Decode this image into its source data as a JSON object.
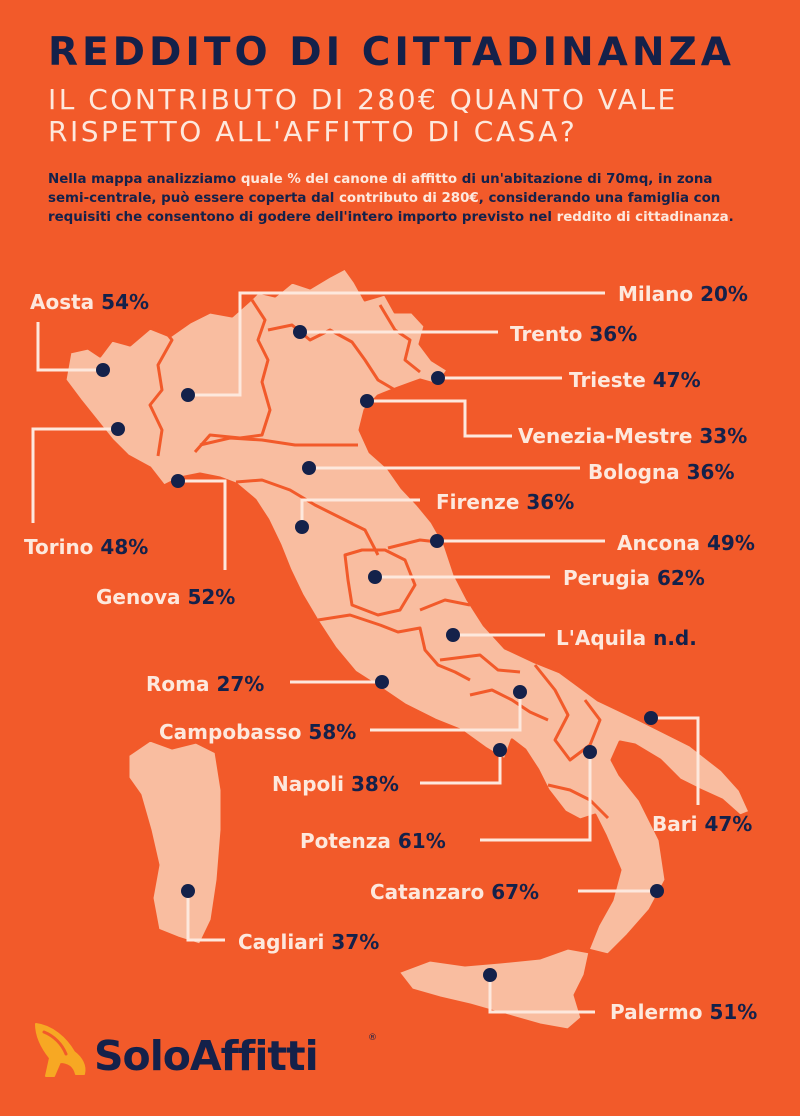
{
  "header": {
    "title": "REDDITO DI CITTADINANZA",
    "subtitle_line1": "IL CONTRIBUTO DI 280€ QUANTO VALE",
    "subtitle_line2": "RISPETTO ALL'AFFITTO DI CASA?"
  },
  "intro": {
    "p1": "Nella mappa analizziamo ",
    "h1": "quale % del canone di affitto",
    "p2": " di un'abitazione di 70mq, in zona semi-centrale, può essere coperta dal ",
    "h2": "contributo di 280€",
    "p3": ", considerando una famiglia con requisiti che consentono di godere dell'intero importo previsto nel ",
    "h3": "reddito di cittadinanza",
    "p4": "."
  },
  "colors": {
    "background": "#F25A2A",
    "map_fill": "#F9BDA0",
    "border": "#F25A2A",
    "marker": "#14214A",
    "text_light": "#FDE8DD",
    "text_dark": "#14214A",
    "logo_accent": "#F7A823"
  },
  "cities": [
    {
      "name": "Aosta",
      "value": "54%"
    },
    {
      "name": "Milano",
      "value": "20%"
    },
    {
      "name": "Trento",
      "value": "36%"
    },
    {
      "name": "Trieste",
      "value": "47%"
    },
    {
      "name": "Venezia-Mestre",
      "value": "33%"
    },
    {
      "name": "Bologna",
      "value": "36%"
    },
    {
      "name": "Firenze",
      "value": "36%"
    },
    {
      "name": "Torino",
      "value": "48%"
    },
    {
      "name": "Ancona",
      "value": "49%"
    },
    {
      "name": "Perugia",
      "value": "62%"
    },
    {
      "name": "Genova",
      "value": "52%"
    },
    {
      "name": "L'Aquila",
      "value": "n.d."
    },
    {
      "name": "Roma",
      "value": "27%"
    },
    {
      "name": "Campobasso",
      "value": "58%"
    },
    {
      "name": "Napoli",
      "value": "38%"
    },
    {
      "name": "Bari",
      "value": "47%"
    },
    {
      "name": "Potenza",
      "value": "61%"
    },
    {
      "name": "Catanzaro",
      "value": "67%"
    },
    {
      "name": "Cagliari",
      "value": "37%"
    },
    {
      "name": "Palermo",
      "value": "51%"
    }
  ],
  "logo": {
    "text": "SoloAffitti",
    "reg": "®",
    "icon": "rabbit-icon"
  }
}
